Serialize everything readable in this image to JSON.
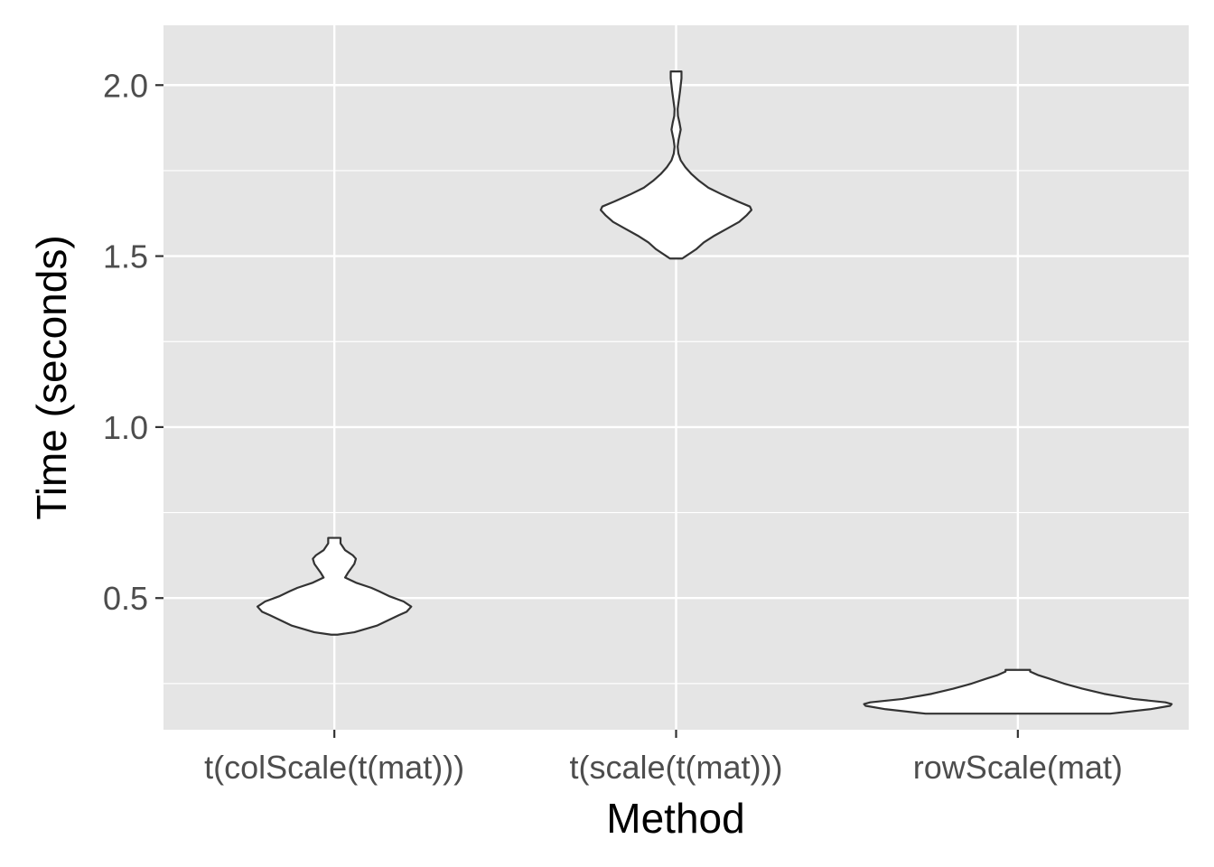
{
  "chart_data": {
    "type": "violin",
    "title": "",
    "xlabel": "Method",
    "ylabel": "Time (seconds)",
    "categories": [
      "t(colScale(t(mat)))",
      "t(scale(t(mat)))",
      "rowScale(mat)"
    ],
    "yticks": [
      0.5,
      1.0,
      1.5,
      2.0
    ],
    "ytick_labels": [
      "0.5",
      "1.0",
      "1.5",
      "2.0"
    ],
    "ylim": [
      0.115,
      2.175
    ],
    "grid": true,
    "legend": "none",
    "colors": {
      "panel": "#e5e5e5",
      "grid": "#ffffff",
      "violin_fill": "#ffffff",
      "violin_stroke": "#333333",
      "tick_text": "#4d4d4d",
      "tick_mark": "#333333"
    },
    "violins": [
      {
        "category": "t(colScale(t(mat)))",
        "min": 0.393,
        "max": 0.676,
        "density": [
          [
            0.393,
            0.02
          ],
          [
            0.4,
            0.13
          ],
          [
            0.42,
            0.28
          ],
          [
            0.45,
            0.42
          ],
          [
            0.46,
            0.47
          ],
          [
            0.475,
            0.5
          ],
          [
            0.49,
            0.45
          ],
          [
            0.505,
            0.36
          ],
          [
            0.52,
            0.29
          ],
          [
            0.53,
            0.24
          ],
          [
            0.545,
            0.14
          ],
          [
            0.56,
            0.07
          ],
          [
            0.575,
            0.09
          ],
          [
            0.6,
            0.13
          ],
          [
            0.615,
            0.14
          ],
          [
            0.625,
            0.12
          ],
          [
            0.64,
            0.07
          ],
          [
            0.66,
            0.04
          ],
          [
            0.676,
            0.04
          ]
        ]
      },
      {
        "category": "t(scale(t(mat)))",
        "min": 1.493,
        "max": 2.04,
        "density": [
          [
            1.493,
            0.04
          ],
          [
            1.505,
            0.08
          ],
          [
            1.52,
            0.13
          ],
          [
            1.54,
            0.18
          ],
          [
            1.56,
            0.25
          ],
          [
            1.58,
            0.33
          ],
          [
            1.6,
            0.41
          ],
          [
            1.62,
            0.46
          ],
          [
            1.635,
            0.49
          ],
          [
            1.645,
            0.48
          ],
          [
            1.66,
            0.4
          ],
          [
            1.68,
            0.3
          ],
          [
            1.7,
            0.21
          ],
          [
            1.72,
            0.15
          ],
          [
            1.74,
            0.1
          ],
          [
            1.76,
            0.06
          ],
          [
            1.78,
            0.03
          ],
          [
            1.8,
            0.015
          ],
          [
            1.82,
            0.01
          ],
          [
            1.84,
            0.016
          ],
          [
            1.87,
            0.03
          ],
          [
            1.89,
            0.022
          ],
          [
            1.91,
            0.012
          ],
          [
            1.93,
            0.01
          ],
          [
            1.95,
            0.016
          ],
          [
            1.98,
            0.025
          ],
          [
            2.0,
            0.03
          ],
          [
            2.02,
            0.035
          ],
          [
            2.04,
            0.035
          ]
        ]
      },
      {
        "category": "rowScale(mat)",
        "min": 0.162,
        "max": 0.29,
        "density": [
          [
            0.162,
            0.6
          ],
          [
            0.175,
            0.86
          ],
          [
            0.185,
            0.99
          ],
          [
            0.19,
            1.0
          ],
          [
            0.195,
            0.96
          ],
          [
            0.205,
            0.75
          ],
          [
            0.22,
            0.56
          ],
          [
            0.235,
            0.42
          ],
          [
            0.25,
            0.3
          ],
          [
            0.265,
            0.2
          ],
          [
            0.275,
            0.13
          ],
          [
            0.285,
            0.08
          ],
          [
            0.29,
            0.08
          ]
        ]
      }
    ]
  }
}
